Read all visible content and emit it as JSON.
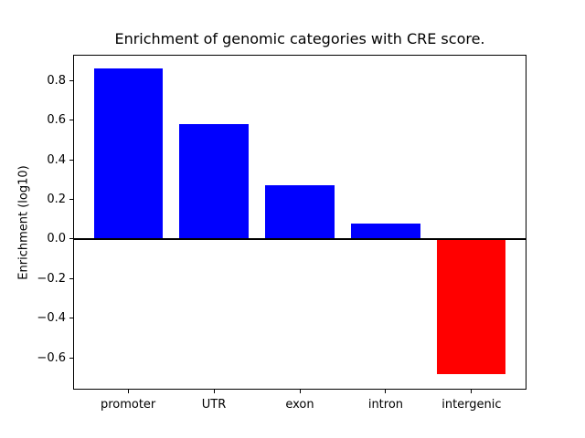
{
  "chart_data": {
    "type": "bar",
    "title": "Enrichment of genomic categories with CRE score.",
    "xlabel": "",
    "ylabel": "Enrichment (log10)",
    "categories": [
      "promoter",
      "UTR",
      "exon",
      "intron",
      "intergenic"
    ],
    "values": [
      0.86,
      0.58,
      0.27,
      0.08,
      -0.68
    ],
    "bar_colors": [
      "#0000ff",
      "#0000ff",
      "#0000ff",
      "#0000ff",
      "#ff0000"
    ],
    "yticks": [
      0.8,
      0.6,
      0.4,
      0.2,
      0.0,
      -0.2,
      -0.4,
      -0.6
    ],
    "ytick_labels": [
      "0.8",
      "0.6",
      "0.4",
      "0.2",
      "0.0",
      "−0.2",
      "−0.4",
      "−0.6"
    ],
    "ylim": [
      -0.76,
      0.93
    ],
    "xlim": [
      -0.64,
      4.64
    ],
    "bar_width": 0.8,
    "zero_line": true,
    "grid": false,
    "legend_position": "none",
    "axis_color": "#000000",
    "background_color": "#ffffff"
  }
}
